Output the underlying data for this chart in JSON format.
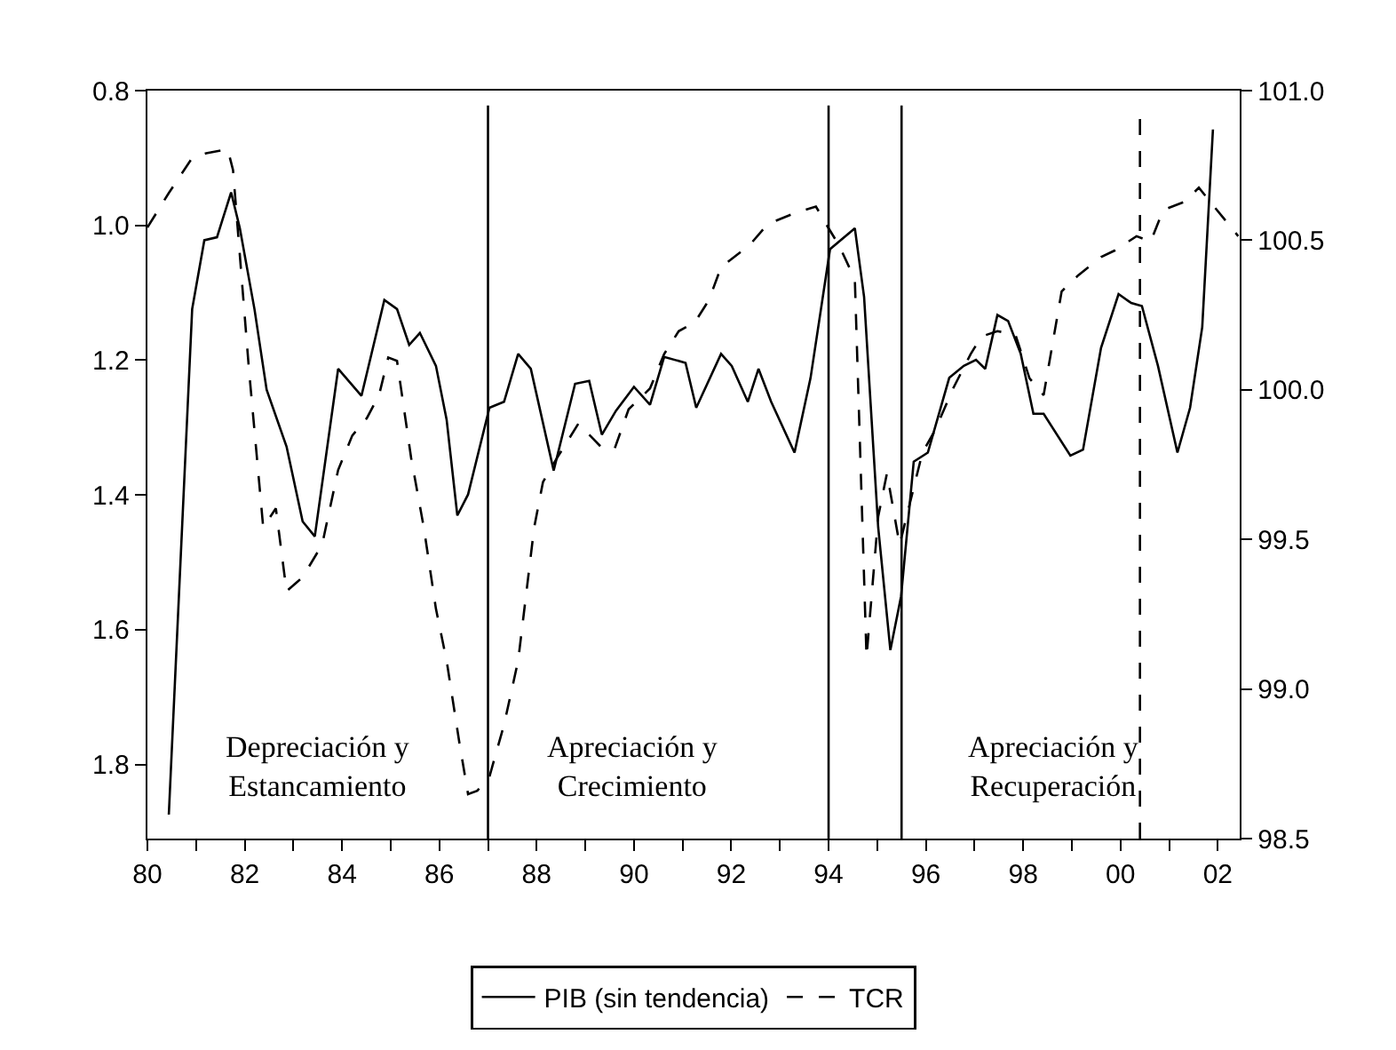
{
  "chart_data": {
    "type": "line",
    "series": [
      {
        "name": "PIB (sin tendencia)",
        "color": "#000000",
        "line_style": "solid",
        "axis": "y2",
        "x": [
          1980.44,
          1980.92,
          1981.17,
          1981.43,
          1981.72,
          1981.9,
          1982.2,
          1982.45,
          1982.86,
          1983.19,
          1983.44,
          1983.92,
          1984.4,
          1984.87,
          1985.13,
          1985.38,
          1985.6,
          1985.93,
          1986.15,
          1986.37,
          1986.59,
          1987.03,
          1987.33,
          1987.62,
          1987.88,
          1988.35,
          1988.79,
          1989.08,
          1989.34,
          1989.63,
          1990.0,
          1990.33,
          1990.62,
          1991.06,
          1991.28,
          1991.79,
          1992.01,
          1992.34,
          1992.56,
          1992.82,
          1993.3,
          1993.63,
          1994.03,
          1994.54,
          1994.73,
          1995.02,
          1995.27,
          1995.49,
          1995.75,
          1996.04,
          1996.48,
          1996.78,
          1997.03,
          1997.22,
          1997.47,
          1997.69,
          1997.95,
          1998.21,
          1998.42,
          1998.97,
          1999.23,
          1999.6,
          1999.96,
          2000.22,
          2000.44,
          2000.77,
          2001.17,
          2001.43,
          2001.68,
          2001.9
        ],
        "values": [
          98.58,
          100.27,
          100.5,
          100.51,
          100.66,
          100.54,
          100.27,
          100.0,
          99.81,
          99.56,
          99.51,
          100.07,
          99.98,
          100.3,
          100.27,
          100.15,
          100.19,
          100.08,
          99.9,
          99.58,
          99.65,
          99.94,
          99.96,
          100.12,
          100.07,
          99.73,
          100.02,
          100.03,
          99.85,
          99.93,
          100.01,
          99.95,
          100.11,
          100.09,
          99.94,
          100.12,
          100.08,
          99.96,
          100.07,
          99.96,
          99.79,
          100.04,
          100.47,
          100.54,
          100.31,
          99.54,
          99.13,
          99.31,
          99.76,
          99.79,
          100.04,
          100.08,
          100.1,
          100.07,
          100.25,
          100.23,
          100.12,
          99.92,
          99.92,
          99.78,
          99.8,
          100.14,
          100.32,
          100.29,
          100.28,
          100.08,
          99.79,
          99.94,
          100.21,
          100.87
        ]
      },
      {
        "name": "TCR",
        "color": "#000000",
        "line_style": "dashed",
        "axis": "y",
        "x": [
          1980.0,
          1980.44,
          1980.92,
          1981.21,
          1981.65,
          1981.76,
          1982.09,
          1982.38,
          1982.64,
          1982.86,
          1983.19,
          1983.59,
          1983.92,
          1984.21,
          1984.51,
          1984.76,
          1984.95,
          1985.13,
          1985.42,
          1985.68,
          1985.93,
          1986.15,
          1986.41,
          1986.59,
          1986.78,
          1987.03,
          1987.33,
          1987.62,
          1987.95,
          1988.13,
          1988.42,
          1988.86,
          1989.34,
          1989.6,
          1989.89,
          1990.33,
          1990.62,
          1990.92,
          1991.25,
          1991.54,
          1991.79,
          1992.38,
          1992.75,
          1993.26,
          1993.74,
          1993.99,
          1994.21,
          1994.54,
          1994.78,
          1995.02,
          1995.2,
          1995.46,
          1995.93,
          1996.19,
          1996.56,
          1996.92,
          1997.14,
          1997.47,
          1997.84,
          1998.13,
          1998.42,
          1998.79,
          1999.12,
          1999.6,
          1999.89,
          2000.33,
          2000.62,
          2000.88,
          2001.32,
          2001.61,
          2001.9,
          2002.42
        ],
        "values": [
          1.003,
          0.952,
          0.9,
          0.893,
          0.887,
          0.918,
          1.216,
          1.448,
          1.42,
          1.543,
          1.522,
          1.474,
          1.363,
          1.312,
          1.286,
          1.252,
          1.196,
          1.201,
          1.345,
          1.448,
          1.569,
          1.646,
          1.767,
          1.844,
          1.839,
          1.818,
          1.741,
          1.646,
          1.448,
          1.381,
          1.345,
          1.294,
          1.33,
          1.332,
          1.273,
          1.242,
          1.191,
          1.157,
          1.144,
          1.111,
          1.062,
          1.029,
          0.998,
          0.983,
          0.972,
          1.003,
          1.029,
          1.08,
          1.641,
          1.432,
          1.368,
          1.474,
          1.337,
          1.304,
          1.242,
          1.191,
          1.165,
          1.157,
          1.162,
          1.227,
          1.252,
          1.098,
          1.075,
          1.047,
          1.037,
          1.016,
          1.024,
          0.977,
          0.965,
          0.944,
          0.97,
          1.016
        ]
      }
    ],
    "xlim": [
      1980.0,
      2002.45
    ],
    "xticks": [
      {
        "value": 1980,
        "label": "80"
      },
      {
        "value": 1981,
        "label": null
      },
      {
        "value": 1982,
        "label": "82"
      },
      {
        "value": 1983,
        "label": null
      },
      {
        "value": 1984,
        "label": "84"
      },
      {
        "value": 1985,
        "label": null
      },
      {
        "value": 1986,
        "label": "86"
      },
      {
        "value": 1987,
        "label": null
      },
      {
        "value": 1988,
        "label": "88"
      },
      {
        "value": 1989,
        "label": null
      },
      {
        "value": 1990,
        "label": "90"
      },
      {
        "value": 1991,
        "label": null
      },
      {
        "value": 1992,
        "label": "92"
      },
      {
        "value": 1993,
        "label": null
      },
      {
        "value": 1994,
        "label": "94"
      },
      {
        "value": 1995,
        "label": null
      },
      {
        "value": 1996,
        "label": "96"
      },
      {
        "value": 1997,
        "label": null
      },
      {
        "value": 1998,
        "label": "98"
      },
      {
        "value": 1999,
        "label": null
      },
      {
        "value": 2000,
        "label": "00"
      },
      {
        "value": 2001,
        "label": null
      },
      {
        "value": 2002,
        "label": "02"
      }
    ],
    "ylim": [
      1.91,
      0.8
    ],
    "yticks": [
      {
        "value": 0.8,
        "label": "0.8"
      },
      {
        "value": 1.0,
        "label": "1.0"
      },
      {
        "value": 1.2,
        "label": "1.2"
      },
      {
        "value": 1.4,
        "label": "1.4"
      },
      {
        "value": 1.6,
        "label": "1.6"
      },
      {
        "value": 1.8,
        "label": "1.8"
      }
    ],
    "y2lim": [
      98.5,
      101.0
    ],
    "y2ticks": [
      {
        "value": 98.5,
        "label": "98.5"
      },
      {
        "value": 99.0,
        "label": "99.0"
      },
      {
        "value": 99.5,
        "label": "99.5"
      },
      {
        "value": 100.0,
        "label": "100.0"
      },
      {
        "value": 100.5,
        "label": "100.5"
      },
      {
        "value": 101.0,
        "label": "101.0"
      }
    ],
    "ref_lines": [
      {
        "axis": "x",
        "value": 1987.0,
        "color": "#000000",
        "line_style": "solid"
      },
      {
        "axis": "x",
        "value": 1994.0,
        "color": "#000000",
        "line_style": "solid"
      },
      {
        "axis": "x",
        "value": 1995.5,
        "color": "#000000",
        "line_style": "solid"
      },
      {
        "axis": "x",
        "value": 2000.4,
        "color": "#000000",
        "line_style": "dashed"
      }
    ],
    "annotations": [
      "Depreciación y\nEstancamiento",
      "Apreciación y\nCrecimiento",
      "Apreciación y\nRecuperación"
    ],
    "legend": "bottom",
    "marker": "none"
  }
}
